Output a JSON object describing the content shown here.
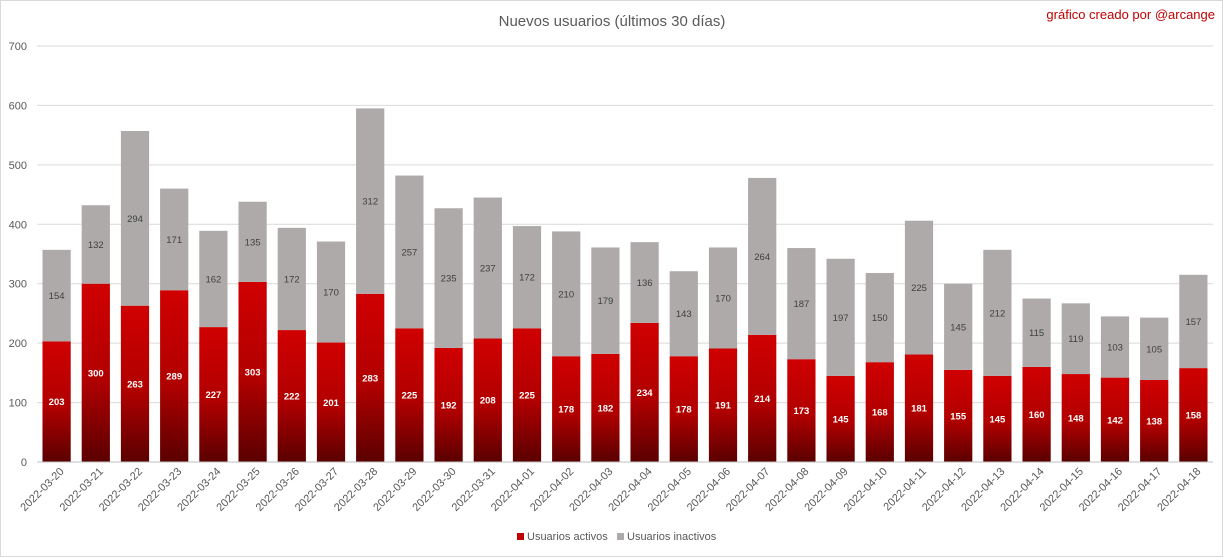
{
  "chart_data": {
    "type": "bar",
    "stacked": true,
    "title": "Nuevos usuarios (últimos 30 días)",
    "credit": "gráfico creado por @arcange",
    "categories": [
      "2022-03-20",
      "2022-03-21",
      "2022-03-22",
      "2022-03-23",
      "2022-03-24",
      "2022-03-25",
      "2022-03-26",
      "2022-03-27",
      "2022-03-28",
      "2022-03-29",
      "2022-03-30",
      "2022-03-31",
      "2022-04-01",
      "2022-04-02",
      "2022-04-03",
      "2022-04-04",
      "2022-04-05",
      "2022-04-06",
      "2022-04-07",
      "2022-04-08",
      "2022-04-09",
      "2022-04-10",
      "2022-04-11",
      "2022-04-12",
      "2022-04-13",
      "2022-04-14",
      "2022-04-15",
      "2022-04-16",
      "2022-04-17",
      "2022-04-18"
    ],
    "series": [
      {
        "name": "Usuarios activos",
        "color": "#c00000",
        "values": [
          203,
          300,
          263,
          289,
          227,
          303,
          222,
          201,
          283,
          225,
          192,
          208,
          225,
          178,
          182,
          234,
          178,
          191,
          214,
          173,
          145,
          168,
          181,
          155,
          145,
          160,
          148,
          142,
          138,
          158
        ]
      },
      {
        "name": "Usuarios inactivos",
        "color": "#aeaaaa",
        "values": [
          154,
          132,
          294,
          171,
          162,
          135,
          172,
          170,
          312,
          257,
          235,
          237,
          172,
          210,
          179,
          136,
          143,
          170,
          264,
          187,
          197,
          150,
          225,
          145,
          212,
          115,
          119,
          103,
          105,
          157
        ]
      }
    ],
    "yticks": [
      0,
      100,
      200,
      300,
      400,
      500,
      600,
      700
    ],
    "ylim": [
      0,
      700
    ],
    "grid": true,
    "legend_position": "bottom"
  }
}
